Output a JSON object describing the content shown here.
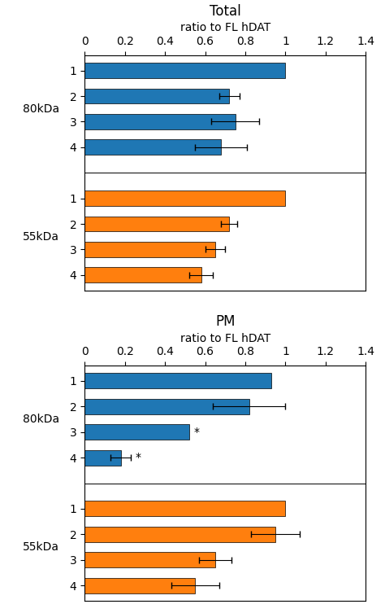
{
  "chart_data": [
    {
      "type": "bar",
      "orientation": "horizontal",
      "title": "Total",
      "xlabel": "ratio to FL hDAT",
      "categories": [
        "1",
        "2",
        "3",
        "4"
      ],
      "series": [
        {
          "name": "80kDa",
          "values": [
            1.0,
            0.72,
            0.75,
            0.68
          ],
          "errors": [
            0.0,
            0.05,
            0.12,
            0.13
          ]
        },
        {
          "name": "55kDa",
          "values": [
            1.0,
            0.72,
            0.65,
            0.58
          ],
          "errors": [
            0.0,
            0.04,
            0.05,
            0.06
          ]
        }
      ],
      "xlim": [
        0,
        1.4
      ],
      "xticks": [
        0,
        0.2,
        0.4,
        0.6,
        0.8,
        {
          "value": 1.0,
          "label": "1"
        },
        1.2,
        1.4
      ]
    },
    {
      "type": "bar",
      "orientation": "horizontal",
      "title": "PM",
      "xlabel": "ratio to FL hDAT",
      "categories": [
        "1",
        "2",
        "3",
        "4"
      ],
      "series": [
        {
          "name": "80kDa",
          "values": [
            0.93,
            0.82,
            0.52,
            0.18
          ],
          "errors": [
            0.0,
            0.18,
            0.0,
            0.05
          ]
        },
        {
          "name": "55kDa",
          "values": [
            1.0,
            0.95,
            0.65,
            0.55
          ],
          "errors": [
            0.0,
            0.12,
            0.08,
            0.12
          ]
        }
      ],
      "xlim": [
        0,
        1.4
      ],
      "xticks": [
        0,
        0.2,
        0.4,
        0.6,
        0.8,
        {
          "value": 1.0,
          "label": "1"
        },
        1.2,
        1.4
      ],
      "annotations": [
        {
          "series": "80kDa",
          "category": "3",
          "text": "*"
        },
        {
          "series": "80kDa",
          "category": "4",
          "text": "*"
        }
      ]
    }
  ]
}
